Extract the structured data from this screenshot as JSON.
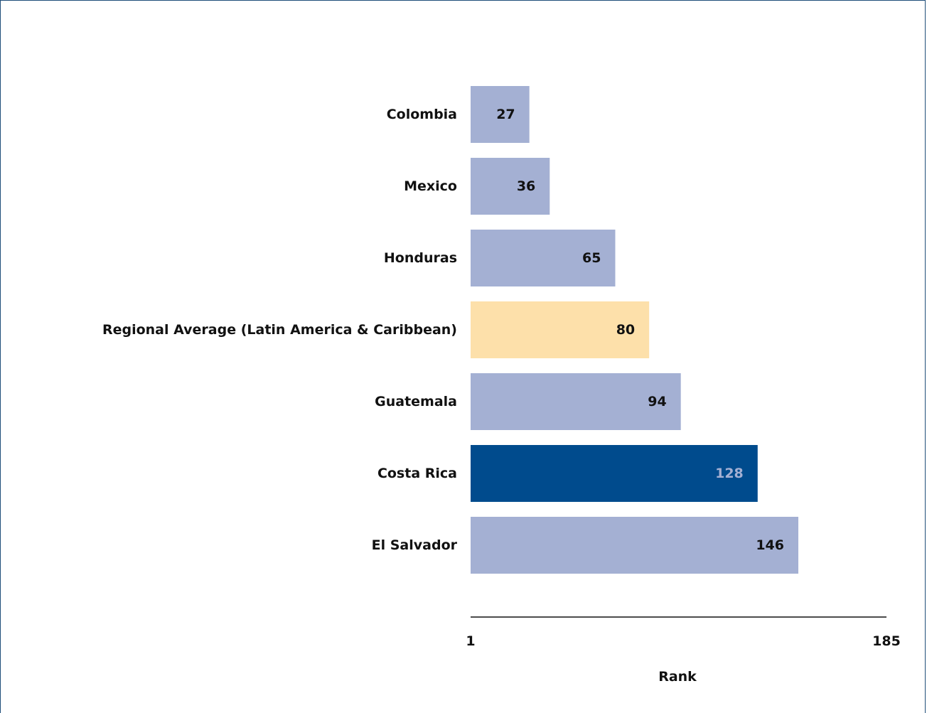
{
  "chart_data": {
    "type": "bar",
    "orientation": "horizontal",
    "title": "",
    "xlabel": "Rank",
    "ylabel": "",
    "xlim": [
      1,
      185
    ],
    "x_ticks": [
      "1",
      "185"
    ],
    "grid": false,
    "legend": "none",
    "categories": [
      "Colombia",
      "Mexico",
      "Honduras",
      "Regional Average (Latin America & Caribbean)",
      "Guatemala",
      "Costa Rica",
      "El Salvador"
    ],
    "values": [
      27,
      36,
      65,
      80,
      94,
      128,
      146
    ],
    "bar_colors": [
      "#a4b0d3",
      "#a4b0d3",
      "#a4b0d3",
      "#fde0aa",
      "#a4b0d3",
      "#004b8d",
      "#a4b0d3"
    ],
    "value_label_colors": [
      "#111111",
      "#111111",
      "#111111",
      "#111111",
      "#111111",
      "#a4b0d3",
      "#111111"
    ]
  }
}
